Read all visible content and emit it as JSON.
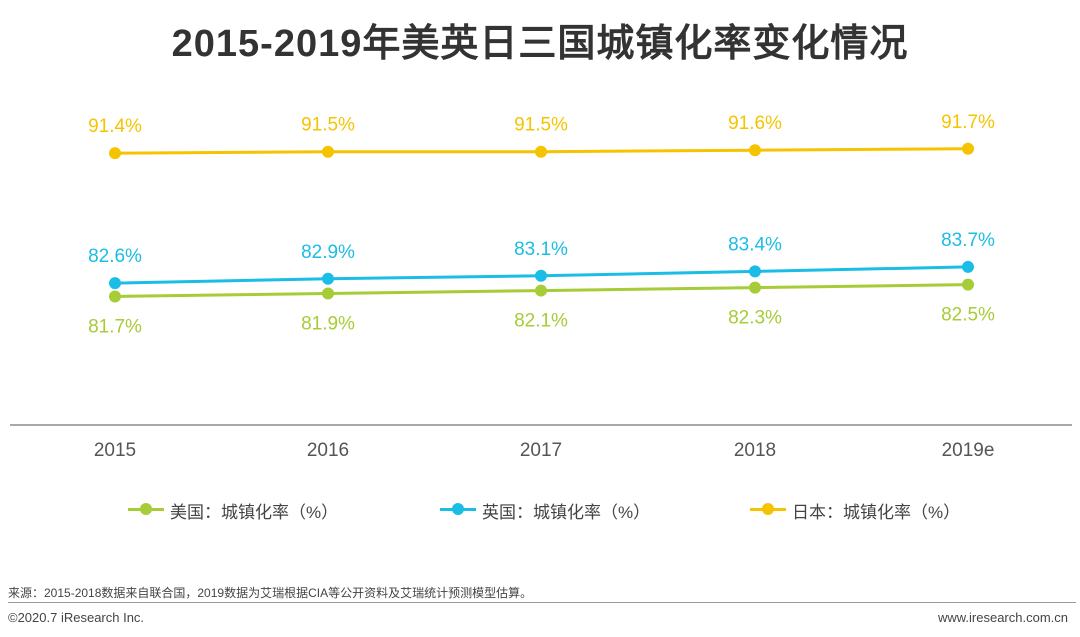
{
  "chart_data": {
    "type": "line",
    "title": "2015-2019年美英日三国城镇化率变化情况",
    "categories": [
      "2015",
      "2016",
      "2017",
      "2018",
      "2019e"
    ],
    "series": [
      {
        "name": "美国：城镇化率（%）",
        "values": [
          81.7,
          81.9,
          82.1,
          82.3,
          82.5
        ],
        "labels": [
          "81.7%",
          "81.9%",
          "82.1%",
          "82.3%",
          "82.5%"
        ],
        "color": "#a6cc38",
        "label_position": "below"
      },
      {
        "name": "英国：城镇化率（%）",
        "values": [
          82.6,
          82.9,
          83.1,
          83.4,
          83.7
        ],
        "labels": [
          "82.6%",
          "82.9%",
          "83.1%",
          "83.4%",
          "83.7%"
        ],
        "color": "#1bbde6",
        "label_position": "above"
      },
      {
        "name": "日本：城镇化率（%）",
        "values": [
          91.4,
          91.5,
          91.5,
          91.6,
          91.7
        ],
        "labels": [
          "91.4%",
          "91.5%",
          "91.5%",
          "91.6%",
          "91.7%"
        ],
        "color": "#f5c400",
        "label_position": "above"
      }
    ],
    "xlabel": "",
    "ylabel": "",
    "ylim": [
      73,
      95
    ],
    "grid": false,
    "legend": "bottom"
  },
  "footer": {
    "source": "来源：2015-2018数据来自联合国，2019数据为艾瑞根据CIA等公开资料及艾瑞统计预测模型估算。",
    "copyright": "©2020.7 iResearch Inc.",
    "website": "www.iresearch.com.cn"
  }
}
